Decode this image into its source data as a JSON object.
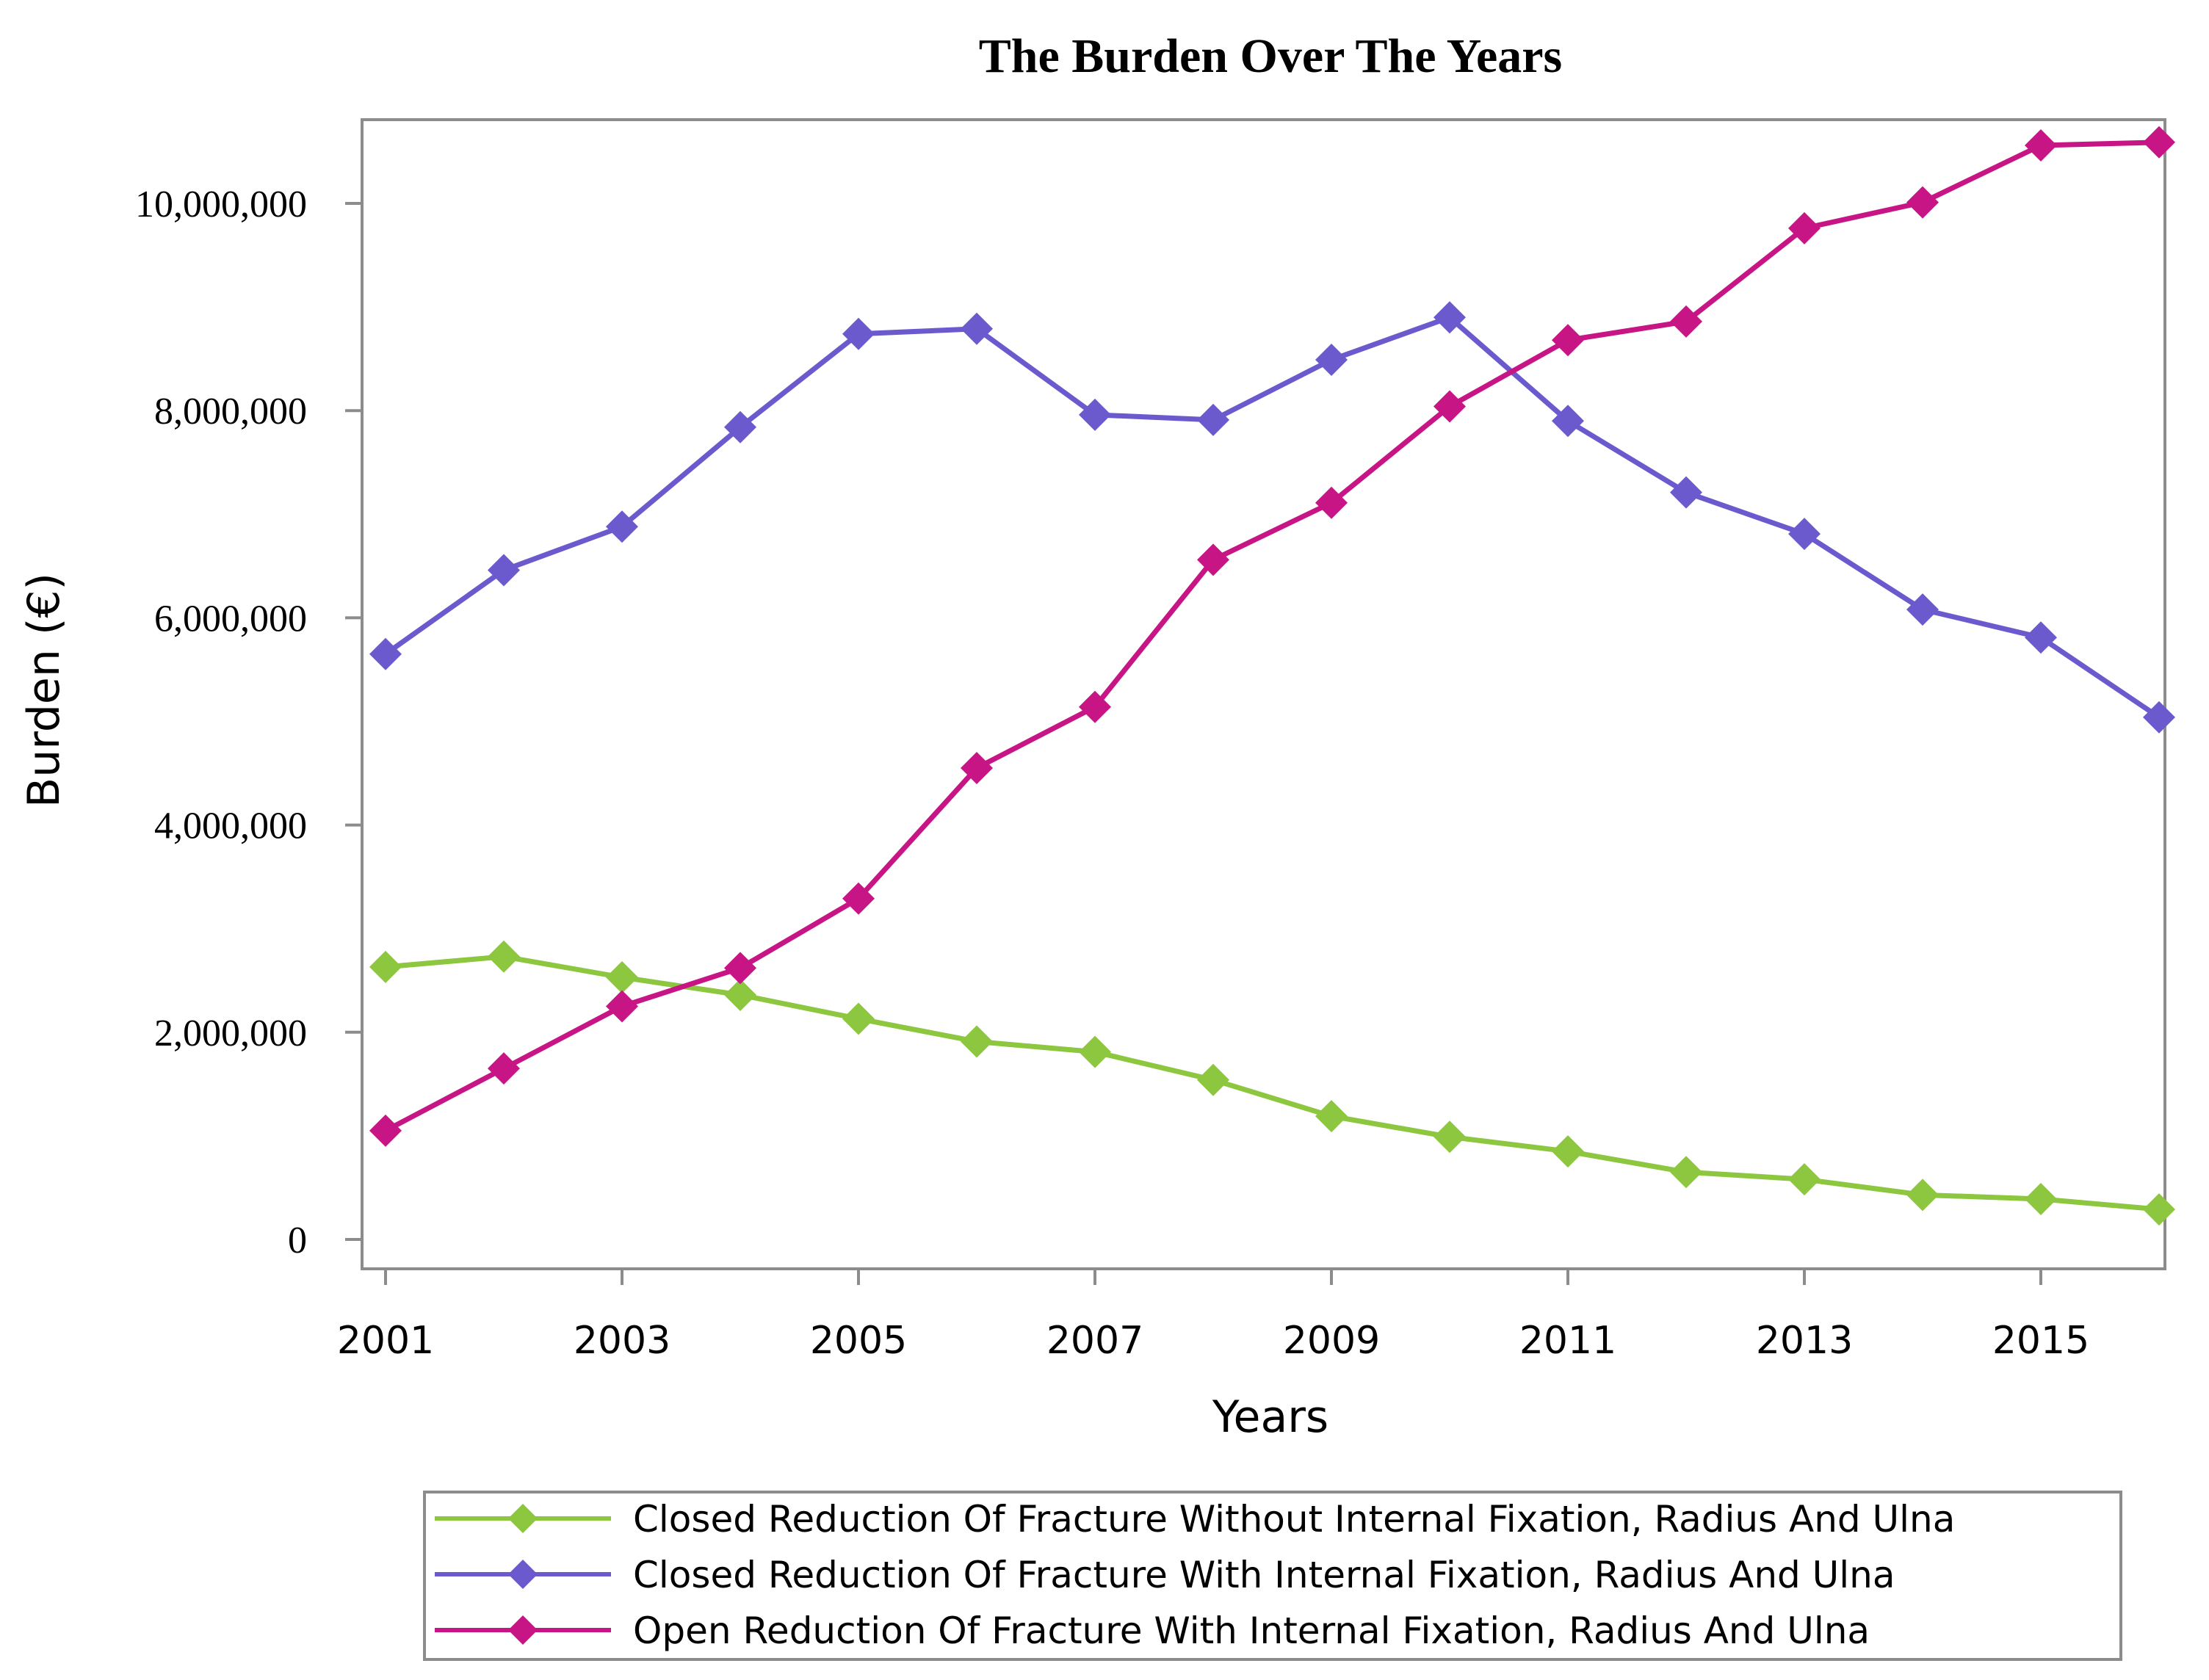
{
  "chart_data": {
    "type": "line",
    "title": "The Burden Over The Years",
    "xlabel": "Years",
    "ylabel": "Burden (€)",
    "x": [
      2001,
      2002,
      2003,
      2004,
      2005,
      2006,
      2007,
      2008,
      2009,
      2010,
      2011,
      2012,
      2013,
      2014,
      2015,
      2016
    ],
    "xlim": [
      2001,
      2016
    ],
    "ylim": [
      -250000,
      10800000
    ],
    "x_ticks": [
      2001,
      2003,
      2005,
      2007,
      2009,
      2011,
      2013,
      2015
    ],
    "x_tick_labels": [
      "2001",
      "2003",
      "2005",
      "2007",
      "2009",
      "2011",
      "2013",
      "2015"
    ],
    "y_ticks": [
      0,
      2000000,
      4000000,
      6000000,
      8000000,
      10000000
    ],
    "y_tick_labels": [
      "0",
      "2,000,000",
      "4,000,000",
      "6,000,000",
      "8,000,000",
      "10,000,000"
    ],
    "grid": false,
    "legend_position": "bottom-center",
    "series": [
      {
        "name": "Closed Reduction Of Fracture Without Internal Fixation, Radius And Ulna",
        "color": "#8dc63f",
        "marker": "diamond",
        "values": [
          2630000,
          2730000,
          2530000,
          2360000,
          2130000,
          1910000,
          1810000,
          1540000,
          1190000,
          990000,
          850000,
          650000,
          580000,
          430000,
          390000,
          290000
        ]
      },
      {
        "name": "Closed Reduction Of Fracture With Internal Fixation, Radius And Ulna",
        "color": "#6a5acd",
        "marker": "diamond",
        "values": [
          5650000,
          6460000,
          6880000,
          7840000,
          8740000,
          8790000,
          7960000,
          7910000,
          8490000,
          8900000,
          7900000,
          7210000,
          6810000,
          6080000,
          5810000,
          5040000
        ]
      },
      {
        "name": "Open Reduction Of Fracture With Internal Fixation, Radius And Ulna",
        "color": "#c71585",
        "marker": "diamond",
        "values": [
          1050000,
          1650000,
          2250000,
          2620000,
          3290000,
          4550000,
          5140000,
          6560000,
          7110000,
          8040000,
          8680000,
          8860000,
          9760000,
          10010000,
          10560000,
          10590000
        ]
      }
    ]
  }
}
